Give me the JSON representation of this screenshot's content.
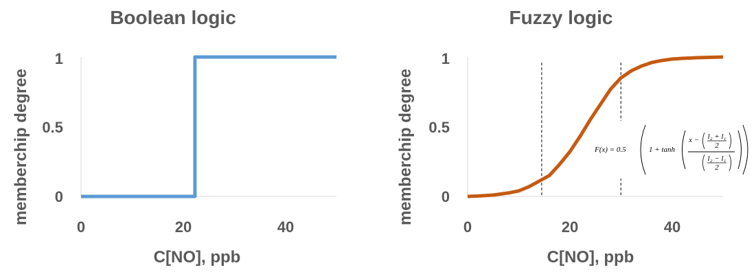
{
  "chart_data": [
    {
      "type": "line",
      "title": "Boolean logic",
      "xlabel": "C[NO], ppb",
      "ylabel": "memberchip degree",
      "xlim": [
        0,
        50
      ],
      "ylim": [
        0,
        1
      ],
      "xticks": [
        "0",
        "20",
        "40"
      ],
      "yticks": [
        "0",
        "0.5",
        "1"
      ],
      "grid": false,
      "color": "#5B9BD5",
      "series": [
        {
          "x": [
            0,
            22.3,
            22.3,
            50
          ],
          "y": [
            0,
            0,
            1,
            1
          ]
        }
      ]
    },
    {
      "type": "line",
      "title": "Fuzzy logic",
      "xlabel": "C[NO], ppb",
      "ylabel": "memberchip degree",
      "xlim": [
        0,
        50
      ],
      "ylim": [
        0,
        1
      ],
      "xticks": [
        "0",
        "20",
        "40"
      ],
      "yticks": [
        "0",
        "0.5",
        "1"
      ],
      "grid": false,
      "color": "#C55A11",
      "series": [
        {
          "x": [
            0,
            2,
            5,
            8,
            10,
            12,
            14,
            16,
            18,
            20,
            22,
            24,
            26,
            28,
            30,
            32,
            34,
            36,
            38,
            40,
            42,
            45,
            48,
            50
          ],
          "y": [
            0,
            0.003,
            0.01,
            0.025,
            0.04,
            0.07,
            0.11,
            0.15,
            0.23,
            0.32,
            0.43,
            0.55,
            0.66,
            0.77,
            0.85,
            0.9,
            0.935,
            0.96,
            0.975,
            0.985,
            0.99,
            0.995,
            0.998,
            1
          ]
        }
      ],
      "reference_lines_x": [
        14.5,
        30
      ],
      "annotation": {
        "lhs": "F(x) = 0.5",
        "one_plus": "1 + tanh",
        "x_minus": "x −",
        "l2_plus_l1": "l₂ + l₁",
        "l2_minus_l1": "l₂ − l₁",
        "two": "2"
      }
    }
  ]
}
